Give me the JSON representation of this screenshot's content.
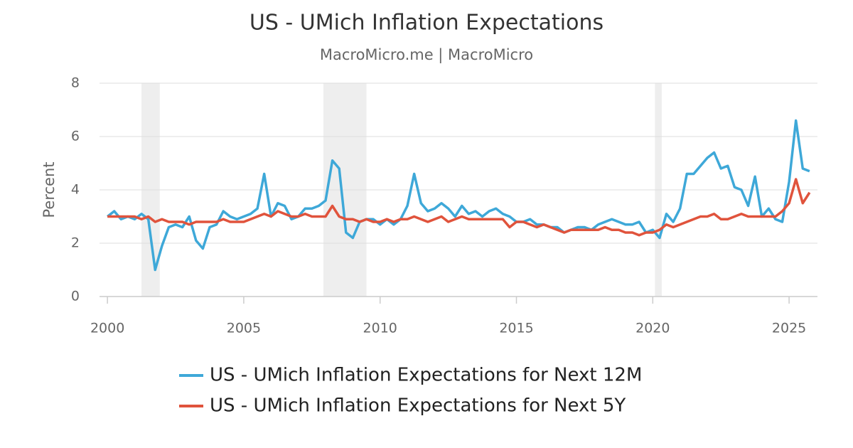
{
  "chart_data": {
    "type": "line",
    "title": "US - UMich Inflation Expectations",
    "subtitle": "MacroMicro.me | MacroMicro",
    "y_label": "Percent",
    "xlim": [
      1999.71,
      2026.04
    ],
    "ylim": [
      0,
      8
    ],
    "xticks": [
      2000,
      2005,
      2010,
      2015,
      2020,
      2025
    ],
    "yticks": [
      0,
      2,
      4,
      6,
      8
    ],
    "grid": true,
    "legend": "bottom",
    "shaded_periods": [
      [
        2001.25,
        2001.92
      ],
      [
        2007.92,
        2009.5
      ],
      [
        2020.08,
        2020.33
      ]
    ],
    "x": [
      2000,
      2000.25,
      2000.5,
      2000.75,
      2001,
      2001.25,
      2001.5,
      2001.75,
      2002,
      2002.25,
      2002.5,
      2002.75,
      2003,
      2003.25,
      2003.5,
      2003.75,
      2004,
      2004.25,
      2004.5,
      2004.75,
      2005,
      2005.25,
      2005.5,
      2005.75,
      2006,
      2006.25,
      2006.5,
      2006.75,
      2007,
      2007.25,
      2007.5,
      2007.75,
      2008,
      2008.25,
      2008.5,
      2008.75,
      2009,
      2009.25,
      2009.5,
      2009.75,
      2010,
      2010.25,
      2010.5,
      2010.75,
      2011,
      2011.25,
      2011.5,
      2011.75,
      2012,
      2012.25,
      2012.5,
      2012.75,
      2013,
      2013.25,
      2013.5,
      2013.75,
      2014,
      2014.25,
      2014.5,
      2014.75,
      2015,
      2015.25,
      2015.5,
      2015.75,
      2016,
      2016.25,
      2016.5,
      2016.75,
      2017,
      2017.25,
      2017.5,
      2017.75,
      2018,
      2018.25,
      2018.5,
      2018.75,
      2019,
      2019.25,
      2019.5,
      2019.75,
      2020,
      2020.25,
      2020.5,
      2020.75,
      2021,
      2021.25,
      2021.5,
      2021.75,
      2022,
      2022.25,
      2022.5,
      2022.75,
      2023,
      2023.25,
      2023.5,
      2023.75,
      2024,
      2024.25,
      2024.5,
      2024.75,
      2025,
      2025.25,
      2025.5,
      2025.75
    ],
    "series": [
      {
        "name": "US - UMich Inflation Expectations for Next 12M",
        "color": "#3ea8d8",
        "values": [
          3.0,
          3.2,
          2.9,
          3.0,
          2.9,
          3.1,
          2.9,
          1.0,
          1.9,
          2.6,
          2.7,
          2.6,
          3.0,
          2.1,
          1.8,
          2.6,
          2.7,
          3.2,
          3.0,
          2.9,
          3.0,
          3.1,
          3.3,
          4.6,
          3.0,
          3.5,
          3.4,
          2.9,
          3.0,
          3.3,
          3.3,
          3.4,
          3.6,
          5.1,
          4.8,
          2.4,
          2.2,
          2.8,
          2.9,
          2.9,
          2.7,
          2.9,
          2.7,
          2.9,
          3.4,
          4.6,
          3.5,
          3.2,
          3.3,
          3.5,
          3.3,
          3.0,
          3.4,
          3.1,
          3.2,
          3.0,
          3.2,
          3.3,
          3.1,
          3.0,
          2.8,
          2.8,
          2.9,
          2.7,
          2.7,
          2.6,
          2.6,
          2.4,
          2.5,
          2.6,
          2.6,
          2.5,
          2.7,
          2.8,
          2.9,
          2.8,
          2.7,
          2.7,
          2.8,
          2.4,
          2.5,
          2.2,
          3.1,
          2.8,
          3.3,
          4.6,
          4.6,
          4.9,
          5.2,
          5.4,
          4.8,
          4.9,
          4.1,
          4.0,
          3.4,
          4.5,
          3.0,
          3.3,
          2.9,
          2.8,
          4.3,
          6.6,
          4.8,
          4.7
        ]
      },
      {
        "name": "US - UMich Inflation Expectations for Next 5Y",
        "color": "#e0533c",
        "values": [
          3.0,
          3.0,
          3.0,
          3.0,
          3.0,
          2.9,
          3.0,
          2.8,
          2.9,
          2.8,
          2.8,
          2.8,
          2.7,
          2.8,
          2.8,
          2.8,
          2.8,
          2.9,
          2.8,
          2.8,
          2.8,
          2.9,
          3.0,
          3.1,
          3.0,
          3.2,
          3.1,
          3.0,
          3.0,
          3.1,
          3.0,
          3.0,
          3.0,
          3.4,
          3.0,
          2.9,
          2.9,
          2.8,
          2.9,
          2.8,
          2.8,
          2.9,
          2.8,
          2.9,
          2.9,
          3.0,
          2.9,
          2.8,
          2.9,
          3.0,
          2.8,
          2.9,
          3.0,
          2.9,
          2.9,
          2.9,
          2.9,
          2.9,
          2.9,
          2.6,
          2.8,
          2.8,
          2.7,
          2.6,
          2.7,
          2.6,
          2.5,
          2.4,
          2.5,
          2.5,
          2.5,
          2.5,
          2.5,
          2.6,
          2.5,
          2.5,
          2.4,
          2.4,
          2.3,
          2.4,
          2.4,
          2.5,
          2.7,
          2.6,
          2.7,
          2.8,
          2.9,
          3.0,
          3.0,
          3.1,
          2.9,
          2.9,
          3.0,
          3.1,
          3.0,
          3.0,
          3.0,
          3.0,
          3.0,
          3.2,
          3.5,
          4.4,
          3.5,
          3.9
        ]
      }
    ]
  }
}
